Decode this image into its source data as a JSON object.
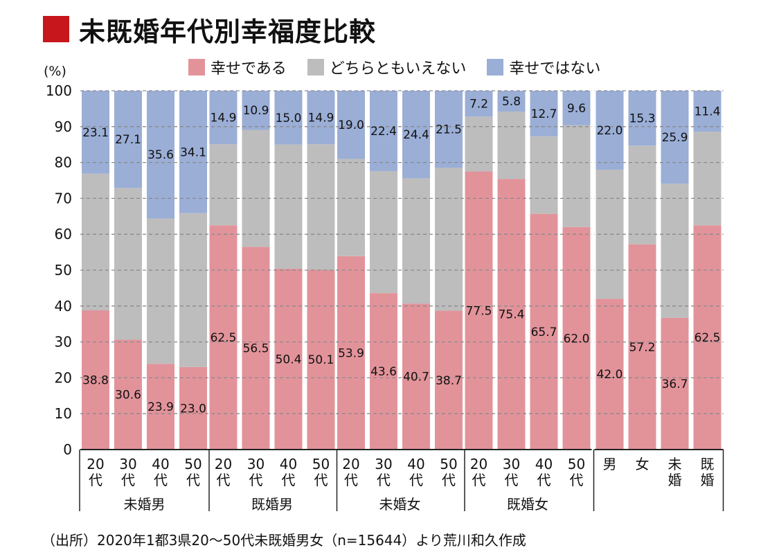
{
  "title": "未既婚年代別幸福度比較",
  "unit_label": "(%)",
  "source": "（出所）2020年1都3県20〜50代未既婚男女（n=15644）より荒川和久作成",
  "colors": {
    "title_accent": "#c8161d",
    "happy": "#e2939a",
    "neutral": "#bdbdbd",
    "unhappy": "#9aaed6",
    "gridline": "#8a8a8a",
    "axis": "#222222"
  },
  "chart_data": {
    "type": "bar",
    "stacked": true,
    "percent": true,
    "ylim": [
      0,
      100
    ],
    "yticks": [
      0,
      10,
      20,
      30,
      40,
      50,
      60,
      70,
      80,
      90,
      100
    ],
    "grid": true,
    "legend_position": "top",
    "series": [
      {
        "name": "幸せである",
        "color": "#e2939a"
      },
      {
        "name": "どちらともいえない",
        "color": "#bdbdbd"
      },
      {
        "name": "幸せではない",
        "color": "#9aaed6"
      }
    ],
    "groups": [
      {
        "name": "未婚男",
        "bars": [
          {
            "label": "20代",
            "happy": 38.8,
            "unhappy": 23.1
          },
          {
            "label": "30代",
            "happy": 30.6,
            "unhappy": 27.1
          },
          {
            "label": "40代",
            "happy": 23.9,
            "unhappy": 35.6
          },
          {
            "label": "50代",
            "happy": 23.0,
            "unhappy": 34.1
          }
        ]
      },
      {
        "name": "既婚男",
        "bars": [
          {
            "label": "20代",
            "happy": 62.5,
            "unhappy": 14.9
          },
          {
            "label": "30代",
            "happy": 56.5,
            "unhappy": 10.9
          },
          {
            "label": "40代",
            "happy": 50.4,
            "unhappy": 15.0
          },
          {
            "label": "50代",
            "happy": 50.1,
            "unhappy": 14.9
          }
        ]
      },
      {
        "name": "未婚女",
        "bars": [
          {
            "label": "20代",
            "happy": 53.9,
            "unhappy": 19.0
          },
          {
            "label": "30代",
            "happy": 43.6,
            "unhappy": 22.4
          },
          {
            "label": "40代",
            "happy": 40.7,
            "unhappy": 24.4
          },
          {
            "label": "50代",
            "happy": 38.7,
            "unhappy": 21.5
          }
        ]
      },
      {
        "name": "既婚女",
        "bars": [
          {
            "label": "20代",
            "happy": 77.5,
            "unhappy": 7.2
          },
          {
            "label": "30代",
            "happy": 75.4,
            "unhappy": 5.8
          },
          {
            "label": "40代",
            "happy": 65.7,
            "unhappy": 12.7
          },
          {
            "label": "50代",
            "happy": 62.0,
            "unhappy": 9.6
          }
        ]
      },
      {
        "name": "",
        "bars": [
          {
            "label": "男",
            "happy": 42.0,
            "unhappy": 22.0
          },
          {
            "label": "女",
            "happy": 57.2,
            "unhappy": 15.3
          },
          {
            "label": "未婚",
            "happy": 36.7,
            "unhappy": 25.9
          },
          {
            "label": "既婚",
            "happy": 62.5,
            "unhappy": 11.4
          }
        ]
      }
    ]
  }
}
